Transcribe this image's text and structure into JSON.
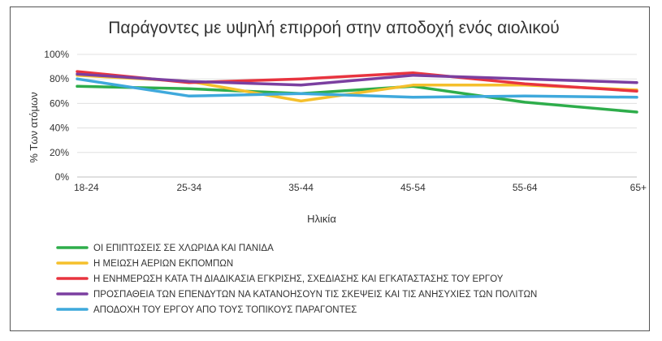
{
  "chart_data": {
    "type": "line",
    "title": "Παράγοντες με υψηλή επιρροή στην αποδοχή ενός αιολικού",
    "xlabel": "Ηλικία",
    "ylabel": "% Των ατόμων",
    "categories": [
      "18-24",
      "25-34",
      "35-44",
      "45-54",
      "55-64",
      "65+"
    ],
    "ylim": [
      0,
      100
    ],
    "yticks": [
      0,
      20,
      40,
      60,
      80,
      100
    ],
    "ytick_labels": [
      "0%",
      "20%",
      "40%",
      "60%",
      "80%",
      "100%"
    ],
    "grid": "horizontal",
    "legend_position": "bottom",
    "series": [
      {
        "name": "ΟΙ ΕΠΙΠΤΩΣΕΙΣ ΣΕ ΧΛΩΡΙΔΑ ΚΑΙ ΠΑΝΙΔΑ",
        "color": "#2EAD4B",
        "values": [
          74,
          72,
          68,
          74,
          61,
          53
        ]
      },
      {
        "name": "Η ΜΕΙΩΣΗ ΑΕΡΙΩΝ ΕΚΠΟΜΠΩΝ",
        "color": "#F5C02C",
        "values": [
          83,
          78,
          62,
          75,
          75,
          71
        ]
      },
      {
        "name": "Η ΕΝΗΜΕΡΩΣΗ ΚΑΤΑ ΤΗ ΔΙΑΔΙΚΑΣΙΑ ΕΓΚΡΙΣΗΣ, ΣΧΕΔΙΑΣΗΣ ΚΑΙ ΕΓΚΑΤΑΣΤΑΣΗΣ ΤΟΥ ΕΡΓΟΥ",
        "color": "#E8343F",
        "values": [
          86,
          77,
          80,
          85,
          76,
          70
        ]
      },
      {
        "name": "ΠΡΟΣΠΑΘΕΙΑ ΤΩΝ ΕΠΕΝΔΥΤΩΝ ΝΑ ΚΑΤΑΝΟΗΣΟΥΝ ΤΙΣ ΣΚΕΨΕΙΣ ΚΑΙ ΤΙΣ ΑΝΗΣΥΧΙΕΣ ΤΩΝ ΠΟΛΙΤΩΝ",
        "color": "#7B3FA0",
        "values": [
          84,
          78,
          75,
          83,
          80,
          77
        ]
      },
      {
        "name": "ΑΠΟΔΟΧΗ ΤΟΥ ΕΡΓΟΥ ΑΠΟ ΤΟΥΣ ΤΟΠΙΚΟΥΣ ΠΑΡΑΓΟΝΤΕΣ",
        "color": "#3FA9DC",
        "values": [
          80,
          66,
          68,
          65,
          66,
          65
        ]
      }
    ]
  }
}
